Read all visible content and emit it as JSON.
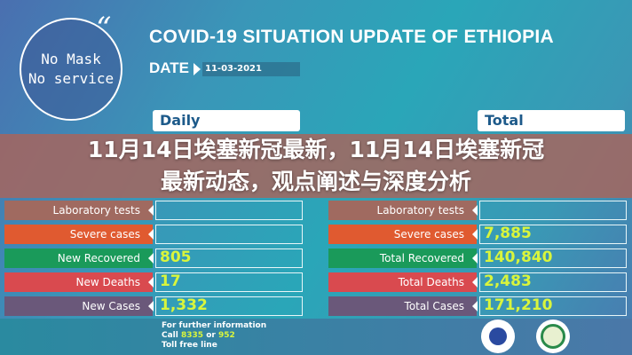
{
  "badge": {
    "text_line1": "No Mask",
    "text_line2": "No service"
  },
  "title": "COVID-19 SITUATION UPDATE OF ETHIOPIA",
  "date_label": "DATE",
  "date_value": "11-03-2021",
  "daily": {
    "header": "Daily",
    "rows": [
      {
        "label": "Laboratory tests",
        "value": "",
        "color": "#a06a60"
      },
      {
        "label": "Severe cases",
        "value": "",
        "color": "#e05a30"
      },
      {
        "label": "New Recovered",
        "value": "805",
        "color": "#1a9a5a"
      },
      {
        "label": "New Deaths",
        "value": "17",
        "color": "#d94a4f"
      },
      {
        "label": "New Cases",
        "value": "1,332",
        "color": "#6a587a"
      }
    ]
  },
  "total": {
    "header": "Total",
    "rows": [
      {
        "label": "Laboratory tests",
        "value": "",
        "color": "#a06a60"
      },
      {
        "label": "Severe cases",
        "value": "7,885",
        "color": "#e05a30"
      },
      {
        "label": "Total Recovered",
        "value": "140,840",
        "color": "#1a9a5a"
      },
      {
        "label": "Total Deaths",
        "value": "2,483",
        "color": "#d94a4f"
      },
      {
        "label": "Total Cases",
        "value": "171,210",
        "color": "#6a587a"
      }
    ]
  },
  "headline": {
    "line1": "11月14日埃塞新冠最新，11月14日埃塞新冠",
    "line2": "最新动态，观点阐述与深度分析"
  },
  "footer": {
    "line1": "For further information",
    "call": "Call",
    "num1": "8335",
    "or": "or",
    "num2": "952",
    "line3": "Toll free line"
  }
}
